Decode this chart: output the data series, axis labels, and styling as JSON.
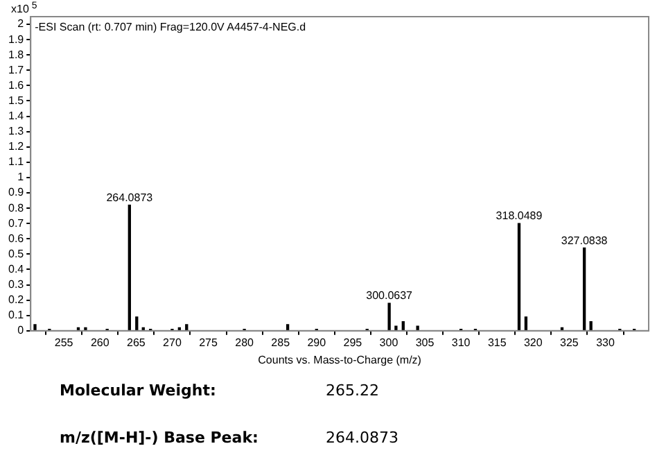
{
  "chart_data": {
    "type": "bar",
    "title": "-ESI Scan (rt: 0.707 min) Frag=120.0V A4457-4-NEG.d",
    "xlabel": "Counts vs. Mass-to-Charge (m/z)",
    "ylabel": "x10$^{5}$",
    "x": [
      251.0,
      253.0,
      257.0,
      258.0,
      261.0,
      264.0873,
      265.09,
      266.0,
      267.0,
      270.0,
      271.0,
      272.0,
      280.0,
      286.0,
      290.0,
      297.0,
      300.0637,
      301.0,
      302.0,
      304.0,
      310.0,
      312.0,
      319.0,
      324.0,
      327.0838,
      328.0,
      332.0,
      334.0
    ],
    "series": [
      {
        "color": "#000000",
        "values": [
          0.04,
          0.01,
          0.02,
          0.02,
          0.01,
          0.82,
          0.09,
          0.02,
          0.01,
          0.01,
          0.02,
          0.04,
          0.01,
          0.04,
          0.01,
          0.01,
          0.18,
          0.03,
          0.06,
          0.03,
          0.01,
          0.01,
          0.09,
          0.02,
          0.54,
          0.06,
          0.01,
          0.01
        ]
      },
      {
        "color": "#000000",
        "x": [
          318.0489
        ],
        "values": [
          0.7
        ]
      }
    ],
    "xlim": [
      250.4,
      336
    ],
    "xticks": [
      255,
      260,
      265,
      270,
      275,
      280,
      285,
      290,
      295,
      300,
      305,
      310,
      315,
      320,
      325,
      330
    ],
    "ylim": [
      0,
      2.05
    ],
    "yticks": [
      0,
      0.1,
      0.2,
      0.3,
      0.4,
      0.5,
      0.6,
      0.7,
      0.8,
      0.9,
      1,
      1.1,
      1.2,
      1.3,
      1.4,
      1.5,
      1.6,
      1.7,
      1.8,
      1.9,
      2
    ],
    "grid": false,
    "legend": false,
    "annotations": [
      {
        "text": "264.0873",
        "x": 264.0873,
        "y": 0.82
      },
      {
        "text": "300.0637",
        "x": 300.0637,
        "y": 0.18
      },
      {
        "text": "318.0489",
        "x": 318.0489,
        "y": 0.7
      },
      {
        "text": "327.0838",
        "x": 327.0838,
        "y": 0.54
      },
      "Molecular Weight:",
      "265.22",
      "m/z([M-H]-) Base Peak:",
      "264.0873"
    ]
  }
}
